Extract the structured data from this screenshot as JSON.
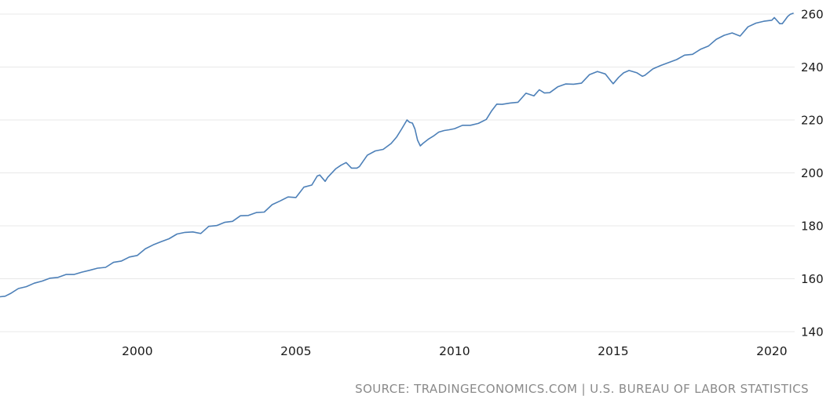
{
  "page": {
    "background": "#ffffff"
  },
  "source_line": "SOURCE: TRADINGECONOMICS.COM | U.S. BUREAU OF LABOR STATISTICS",
  "chart_data": {
    "type": "line",
    "title": "",
    "xlabel": "",
    "ylabel": "",
    "x_ticks": [
      2000,
      2005,
      2010,
      2015,
      2020
    ],
    "y_ticks": [
      140,
      160,
      180,
      200,
      220,
      240,
      260
    ],
    "xlim": [
      1995.67,
      2020.72
    ],
    "ylim": [
      140,
      260
    ],
    "grid": "horizontal",
    "legend_position": "none",
    "line_color": "#4d80b8",
    "grid_color": "#e8e8e8",
    "tick_label_color": "#1a1a1a",
    "points": [
      [
        1995.67,
        153.2
      ],
      [
        1995.83,
        153.4
      ],
      [
        1996.0,
        154.4
      ],
      [
        1996.25,
        156.3
      ],
      [
        1996.5,
        157.0
      ],
      [
        1996.75,
        158.3
      ],
      [
        1997.0,
        159.1
      ],
      [
        1997.25,
        160.2
      ],
      [
        1997.5,
        160.5
      ],
      [
        1997.75,
        161.6
      ],
      [
        1998.0,
        161.6
      ],
      [
        1998.25,
        162.5
      ],
      [
        1998.5,
        163.2
      ],
      [
        1998.75,
        164.0
      ],
      [
        1999.0,
        164.3
      ],
      [
        1999.25,
        166.2
      ],
      [
        1999.5,
        166.7
      ],
      [
        1999.75,
        168.2
      ],
      [
        2000.0,
        168.8
      ],
      [
        2000.25,
        171.3
      ],
      [
        2000.5,
        172.8
      ],
      [
        2000.75,
        174.0
      ],
      [
        2001.0,
        175.1
      ],
      [
        2001.25,
        176.9
      ],
      [
        2001.5,
        177.5
      ],
      [
        2001.75,
        177.7
      ],
      [
        2002.0,
        177.1
      ],
      [
        2002.25,
        179.8
      ],
      [
        2002.5,
        180.1
      ],
      [
        2002.75,
        181.3
      ],
      [
        2003.0,
        181.7
      ],
      [
        2003.25,
        183.8
      ],
      [
        2003.5,
        183.9
      ],
      [
        2003.75,
        185.0
      ],
      [
        2004.0,
        185.2
      ],
      [
        2004.25,
        188.0
      ],
      [
        2004.5,
        189.4
      ],
      [
        2004.75,
        190.9
      ],
      [
        2005.0,
        190.7
      ],
      [
        2005.25,
        194.6
      ],
      [
        2005.5,
        195.4
      ],
      [
        2005.67,
        198.8
      ],
      [
        2005.75,
        199.2
      ],
      [
        2005.92,
        196.8
      ],
      [
        2006.0,
        198.3
      ],
      [
        2006.25,
        201.5
      ],
      [
        2006.42,
        202.9
      ],
      [
        2006.58,
        203.9
      ],
      [
        2006.75,
        201.8
      ],
      [
        2006.92,
        201.8
      ],
      [
        2007.0,
        202.4
      ],
      [
        2007.25,
        206.7
      ],
      [
        2007.5,
        208.3
      ],
      [
        2007.75,
        208.9
      ],
      [
        2008.0,
        211.1
      ],
      [
        2008.17,
        213.5
      ],
      [
        2008.33,
        216.6
      ],
      [
        2008.5,
        220.0
      ],
      [
        2008.58,
        219.1
      ],
      [
        2008.67,
        218.8
      ],
      [
        2008.75,
        216.6
      ],
      [
        2008.83,
        212.4
      ],
      [
        2008.92,
        210.2
      ],
      [
        2009.0,
        211.1
      ],
      [
        2009.17,
        212.7
      ],
      [
        2009.33,
        213.9
      ],
      [
        2009.5,
        215.4
      ],
      [
        2009.67,
        216.0
      ],
      [
        2009.83,
        216.3
      ],
      [
        2010.0,
        216.7
      ],
      [
        2010.25,
        218.0
      ],
      [
        2010.5,
        218.0
      ],
      [
        2010.75,
        218.7
      ],
      [
        2011.0,
        220.2
      ],
      [
        2011.17,
        223.5
      ],
      [
        2011.33,
        226.0
      ],
      [
        2011.5,
        225.9
      ],
      [
        2011.75,
        226.4
      ],
      [
        2012.0,
        226.7
      ],
      [
        2012.25,
        230.1
      ],
      [
        2012.5,
        229.1
      ],
      [
        2012.67,
        231.4
      ],
      [
        2012.83,
        230.2
      ],
      [
        2013.0,
        230.3
      ],
      [
        2013.25,
        232.5
      ],
      [
        2013.5,
        233.6
      ],
      [
        2013.75,
        233.5
      ],
      [
        2014.0,
        233.9
      ],
      [
        2014.25,
        237.1
      ],
      [
        2014.5,
        238.3
      ],
      [
        2014.75,
        237.4
      ],
      [
        2014.92,
        234.8
      ],
      [
        2015.0,
        233.7
      ],
      [
        2015.17,
        236.1
      ],
      [
        2015.33,
        237.8
      ],
      [
        2015.5,
        238.7
      ],
      [
        2015.75,
        237.8
      ],
      [
        2015.92,
        236.5
      ],
      [
        2016.0,
        236.9
      ],
      [
        2016.25,
        239.3
      ],
      [
        2016.5,
        240.6
      ],
      [
        2016.75,
        241.7
      ],
      [
        2017.0,
        242.8
      ],
      [
        2017.25,
        244.5
      ],
      [
        2017.5,
        244.8
      ],
      [
        2017.75,
        246.7
      ],
      [
        2018.0,
        247.9
      ],
      [
        2018.25,
        250.5
      ],
      [
        2018.5,
        252.0
      ],
      [
        2018.75,
        252.9
      ],
      [
        2019.0,
        251.7
      ],
      [
        2019.25,
        255.2
      ],
      [
        2019.5,
        256.6
      ],
      [
        2019.75,
        257.3
      ],
      [
        2020.0,
        257.7
      ],
      [
        2020.08,
        258.7
      ],
      [
        2020.25,
        256.4
      ],
      [
        2020.33,
        256.4
      ],
      [
        2020.42,
        257.8
      ],
      [
        2020.5,
        259.1
      ],
      [
        2020.58,
        259.9
      ],
      [
        2020.67,
        260.3
      ]
    ]
  }
}
